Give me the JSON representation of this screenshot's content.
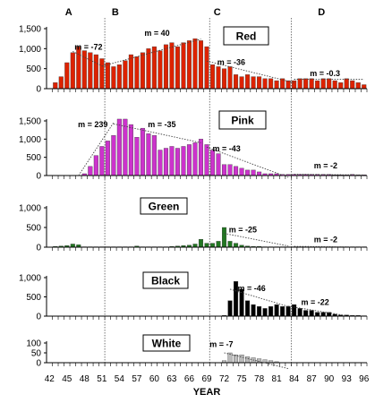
{
  "chart_data": {
    "type": "bar",
    "xlabel": "YEAR",
    "x_tick_labels": [
      "42",
      "45",
      "48",
      "51",
      "54",
      "57",
      "60",
      "63",
      "66",
      "69",
      "72",
      "75",
      "78",
      "81",
      "84",
      "87",
      "90",
      "93",
      "96"
    ],
    "periods": [
      "A",
      "B",
      "C",
      "D"
    ],
    "period_boundaries": [
      51.5,
      69.5,
      83.5
    ],
    "panels": [
      {
        "name": "Red",
        "color": "#dd2200",
        "ylim": [
          0,
          1500
        ],
        "y_ticks": [
          "0",
          "500",
          "1,000",
          "1,500"
        ],
        "years": [
          42,
          43,
          44,
          45,
          46,
          47,
          48,
          49,
          50,
          51,
          52,
          53,
          54,
          55,
          56,
          57,
          58,
          59,
          60,
          61,
          62,
          63,
          64,
          65,
          66,
          67,
          68,
          69,
          70,
          71,
          72,
          73,
          74,
          75,
          76,
          77,
          78,
          79,
          80,
          81,
          82,
          83,
          84,
          85,
          86,
          87,
          88,
          89,
          90,
          91,
          92,
          93,
          94,
          95,
          96
        ],
        "values": [
          0,
          150,
          300,
          650,
          900,
          1050,
          950,
          900,
          850,
          750,
          650,
          550,
          600,
          700,
          850,
          800,
          900,
          1000,
          1050,
          950,
          1100,
          1150,
          1050,
          1150,
          1200,
          1250,
          1200,
          1050,
          600,
          550,
          500,
          550,
          350,
          300,
          350,
          300,
          300,
          250,
          250,
          200,
          250,
          200,
          200,
          250,
          250,
          250,
          200,
          250,
          250,
          200,
          150,
          250,
          200,
          150,
          100
        ],
        "slopes": [
          {
            "label": "m = -72",
            "year": 46.3,
            "value": 970
          },
          {
            "label": "m = 40",
            "year": 58.3,
            "value": 1320
          },
          {
            "label": "m = -36",
            "year": 70.8,
            "value": 590
          },
          {
            "label": "m = -0.3",
            "year": 86.7,
            "value": 310
          }
        ],
        "trend_lines": [
          {
            "from": [
              46,
              930
            ],
            "to": [
              51,
              570
            ]
          },
          {
            "from": [
              51,
              560
            ],
            "to": [
              68,
              1240
            ]
          },
          {
            "from": [
              69,
              690
            ],
            "to": [
              84,
              150
            ]
          },
          {
            "from": [
              84,
              235
            ],
            "to": [
              96,
              232
            ]
          }
        ]
      },
      {
        "name": "Pink",
        "color": "#cc33cc",
        "ylim": [
          0,
          1500
        ],
        "y_ticks": [
          "0",
          "500",
          "1,000",
          "1,500"
        ],
        "years": [
          42,
          43,
          44,
          45,
          46,
          47,
          48,
          49,
          50,
          51,
          52,
          53,
          54,
          55,
          56,
          57,
          58,
          59,
          60,
          61,
          62,
          63,
          64,
          65,
          66,
          67,
          68,
          69,
          70,
          71,
          72,
          73,
          74,
          75,
          76,
          77,
          78,
          79,
          80,
          81,
          82,
          83,
          84,
          85,
          86,
          87,
          88,
          89,
          90,
          91,
          92,
          93,
          94,
          95,
          96
        ],
        "values": [
          0,
          0,
          0,
          0,
          0,
          0,
          50,
          250,
          550,
          800,
          950,
          1100,
          1550,
          1550,
          1400,
          1050,
          1300,
          1150,
          1100,
          700,
          750,
          800,
          750,
          800,
          850,
          900,
          1000,
          850,
          700,
          600,
          300,
          300,
          250,
          200,
          150,
          150,
          100,
          50,
          50,
          50,
          30,
          30,
          30,
          30,
          30,
          30,
          30,
          30,
          30,
          20,
          20,
          20,
          30,
          20,
          20
        ],
        "slopes": [
          {
            "label": "m = 239",
            "year": 46.9,
            "value": 1330
          },
          {
            "label": "m = -35",
            "year": 58.9,
            "value": 1330
          },
          {
            "label": "m = -43",
            "year": 70.0,
            "value": 660
          },
          {
            "label": "m = -2",
            "year": 87.4,
            "value": 200
          }
        ],
        "trend_lines": [
          {
            "from": [
              47,
              0
            ],
            "to": [
              53,
              1450
            ]
          },
          {
            "from": [
              53,
              1420
            ],
            "to": [
              68,
              900
            ]
          },
          {
            "from": [
              69,
              780
            ],
            "to": [
              83,
              -50
            ]
          },
          {
            "from": [
              84,
              35
            ],
            "to": [
              96,
              15
            ]
          }
        ]
      },
      {
        "name": "Green",
        "color": "#227722",
        "ylim": [
          0,
          1000
        ],
        "y_ticks": [
          "0",
          "500",
          "1,000"
        ],
        "years": [
          42,
          43,
          44,
          45,
          46,
          47,
          48,
          49,
          50,
          51,
          52,
          53,
          54,
          55,
          56,
          57,
          58,
          59,
          60,
          61,
          62,
          63,
          64,
          65,
          66,
          67,
          68,
          69,
          70,
          71,
          72,
          73,
          74,
          75,
          76,
          77,
          78,
          79,
          80,
          81,
          82,
          83,
          84,
          85,
          86,
          87,
          88,
          89,
          90,
          91,
          92,
          93,
          94,
          95,
          96
        ],
        "values": [
          0,
          20,
          30,
          40,
          80,
          60,
          10,
          10,
          10,
          10,
          10,
          10,
          10,
          10,
          10,
          30,
          10,
          10,
          10,
          10,
          10,
          20,
          30,
          40,
          50,
          80,
          200,
          100,
          100,
          150,
          500,
          150,
          100,
          50,
          30,
          20,
          20,
          10,
          10,
          10,
          10,
          10,
          10,
          10,
          10,
          10,
          10,
          10,
          10,
          10,
          10,
          10,
          10,
          10,
          10
        ],
        "slopes": [
          {
            "label": "m = -25",
            "year": 72.8,
            "value": 380
          },
          {
            "label": "m = -2",
            "year": 87.4,
            "value": 130
          }
        ],
        "trend_lines": [
          {
            "from": [
              72,
              350
            ],
            "to": [
              83,
              30
            ]
          },
          {
            "from": [
              84,
              20
            ],
            "to": [
              96,
              5
            ]
          }
        ]
      },
      {
        "name": "Black",
        "color": "#000000",
        "ylim": [
          0,
          1000
        ],
        "y_ticks": [
          "0",
          "500",
          "1,000"
        ],
        "years": [
          42,
          43,
          44,
          45,
          46,
          47,
          48,
          49,
          50,
          51,
          52,
          53,
          54,
          55,
          56,
          57,
          58,
          59,
          60,
          61,
          62,
          63,
          64,
          65,
          66,
          67,
          68,
          69,
          70,
          71,
          72,
          73,
          74,
          75,
          76,
          77,
          78,
          79,
          80,
          81,
          82,
          83,
          84,
          85,
          86,
          87,
          88,
          89,
          90,
          91,
          92,
          93,
          94,
          95,
          96
        ],
        "values": [
          0,
          0,
          0,
          0,
          0,
          0,
          0,
          0,
          0,
          0,
          0,
          0,
          0,
          0,
          0,
          0,
          0,
          0,
          0,
          0,
          0,
          0,
          0,
          0,
          0,
          0,
          0,
          0,
          0,
          0,
          20,
          400,
          900,
          700,
          400,
          300,
          250,
          200,
          250,
          300,
          250,
          250,
          300,
          200,
          150,
          150,
          100,
          100,
          100,
          50,
          30,
          30,
          20,
          20,
          10
        ],
        "slopes": [
          {
            "label": "m = -46",
            "year": 74.3,
            "value": 650
          },
          {
            "label": "m = -22",
            "year": 85.2,
            "value": 290
          }
        ],
        "trend_lines": [
          {
            "from": [
              73,
              700
            ],
            "to": [
              83,
              250
            ]
          },
          {
            "from": [
              83,
              260
            ],
            "to": [
              93,
              10
            ]
          }
        ]
      },
      {
        "name": "White",
        "color": "#bbbbbb",
        "ylim": [
          0,
          100
        ],
        "y_ticks": [
          "0",
          "50",
          "100"
        ],
        "years": [
          42,
          43,
          44,
          45,
          46,
          47,
          48,
          49,
          50,
          51,
          52,
          53,
          54,
          55,
          56,
          57,
          58,
          59,
          60,
          61,
          62,
          63,
          64,
          65,
          66,
          67,
          68,
          69,
          70,
          71,
          72,
          73,
          74,
          75,
          76,
          77,
          78,
          79,
          80,
          81,
          82,
          83,
          84,
          85,
          86,
          87,
          88,
          89,
          90,
          91,
          92,
          93,
          94,
          95,
          96
        ],
        "values": [
          0,
          0,
          0,
          0,
          0,
          0,
          0,
          0,
          0,
          0,
          0,
          0,
          0,
          0,
          0,
          0,
          0,
          0,
          0,
          0,
          0,
          0,
          0,
          0,
          0,
          0,
          0,
          0,
          0,
          0,
          10,
          50,
          40,
          40,
          30,
          25,
          20,
          15,
          10,
          5,
          0,
          0,
          0,
          0,
          0,
          0,
          0,
          0,
          0,
          0,
          0,
          0,
          0,
          0,
          0
        ],
        "slopes": [
          {
            "label": "m = -7",
            "year": 69.5,
            "value": 80
          }
        ],
        "trend_lines": [
          {
            "from": [
              72,
              50
            ],
            "to": [
              83,
              -30
            ]
          }
        ]
      }
    ]
  }
}
